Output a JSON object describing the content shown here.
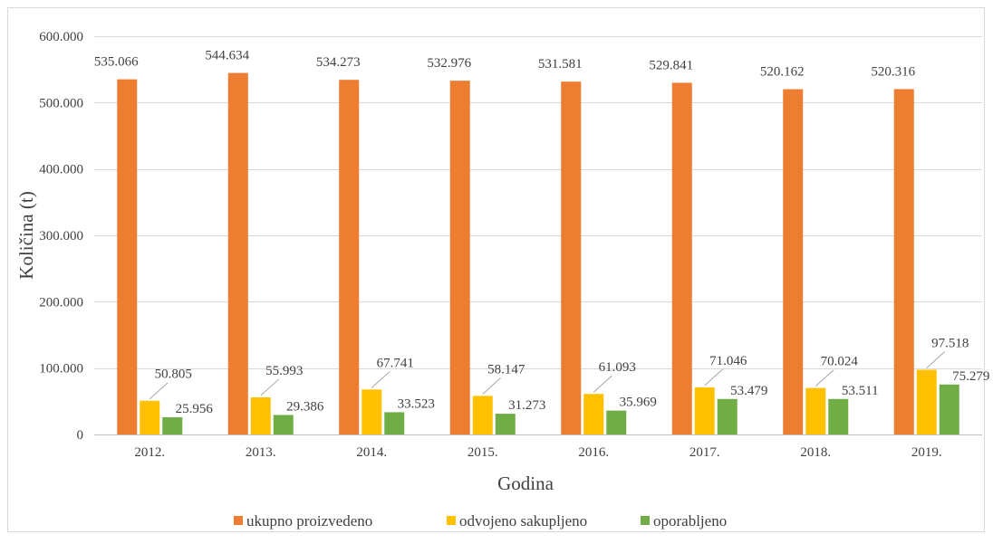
{
  "chart_data": {
    "type": "bar",
    "xlabel": "Godina",
    "ylabel": "Količina (t)",
    "categories": [
      "2012.",
      "2013.",
      "2014.",
      "2015.",
      "2016.",
      "2017.",
      "2018.",
      "2019."
    ],
    "ylim": [
      0,
      600000
    ],
    "yticks": [
      0,
      100000,
      200000,
      300000,
      400000,
      500000,
      600000
    ],
    "ytick_labels": [
      "0",
      "100.000",
      "200.000",
      "300.000",
      "400.000",
      "500.000",
      "600.000"
    ],
    "grid": true,
    "legend_position": "bottom",
    "series": [
      {
        "name": "ukupno proizvedeno",
        "color": "#ED7D31",
        "values": [
          535066,
          544634,
          534273,
          532976,
          531581,
          529841,
          520162,
          520316
        ],
        "labels": [
          "535.066",
          "544.634",
          "534.273",
          "532.976",
          "531.581",
          "529.841",
          "520.162",
          "520.316"
        ]
      },
      {
        "name": "odvojeno sakupljeno",
        "color": "#FFC000",
        "values": [
          50805,
          55993,
          67741,
          58147,
          61093,
          71046,
          70024,
          97518
        ],
        "labels": [
          "50.805",
          "55.993",
          "67.741",
          "58.147",
          "61.093",
          "71.046",
          "70.024",
          "97.518"
        ]
      },
      {
        "name": "oporabljeno",
        "color": "#70AD47",
        "values": [
          25956,
          29386,
          33523,
          31273,
          35969,
          53479,
          53511,
          75279
        ],
        "labels": [
          "25.956",
          "29.386",
          "33.523",
          "31.273",
          "35.969",
          "53.479",
          "53.511",
          "75.279"
        ]
      }
    ]
  }
}
